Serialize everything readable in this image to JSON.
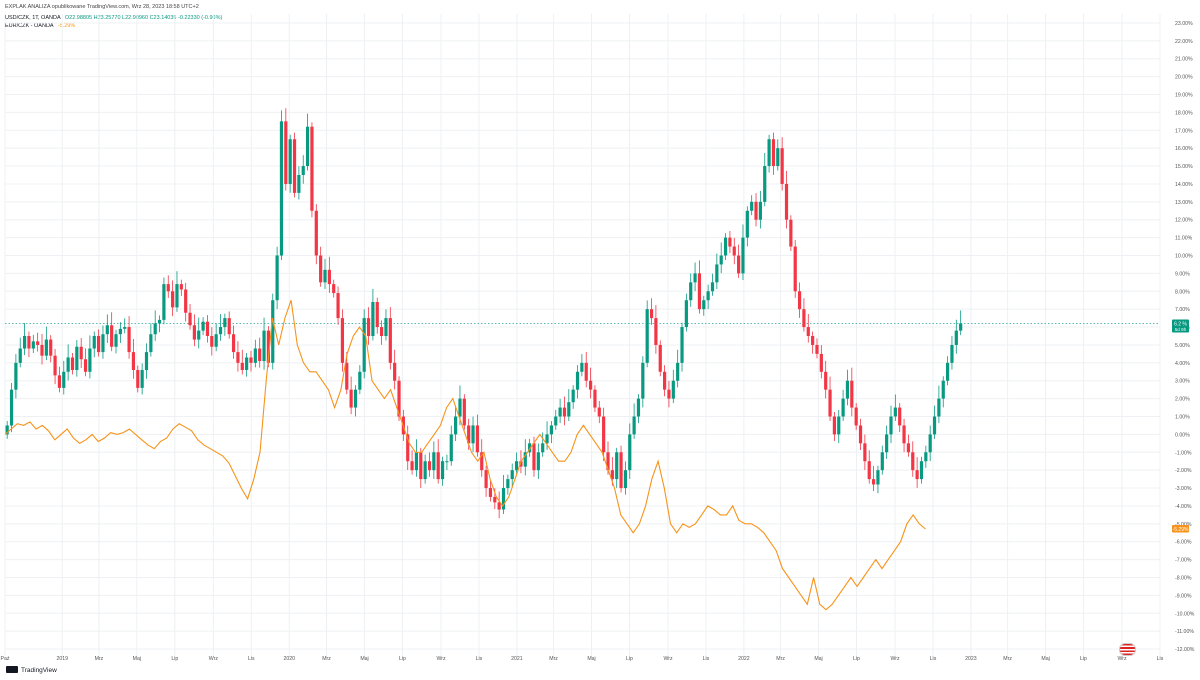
{
  "header": {
    "text": "EXPLAK ANALIZA opublikowane TradingView.com, Wrz 28, 2023 18:58 UTC+2"
  },
  "legend": {
    "series1_label": "USD/CZK, 1T, OANDA",
    "series1_values": "O22.98805 H23.25770 L22.90960 C23.14035 -0.22330 (-0.96%)",
    "series2_label": "EUR/CZK - OANDA",
    "series2_value": "-5.29%"
  },
  "logo": {
    "text": "TradingView"
  },
  "colors": {
    "up": "#089981",
    "down": "#f23645",
    "line": "#f7931a",
    "grid": "#eef0f3",
    "ref_line": "#26a69a"
  },
  "chart_data": {
    "type": "candlestick",
    "y_axis_unit": "%",
    "ylim": [
      -12.5,
      23.5
    ],
    "y_ticks": [
      -12,
      -11,
      -10,
      -9,
      -8,
      -7,
      -6,
      -5,
      -4,
      -3,
      -2,
      -1,
      0,
      1,
      2,
      3,
      4,
      5,
      6,
      7,
      8,
      9,
      10,
      11,
      12,
      13,
      14,
      15,
      16,
      17,
      18,
      19,
      20,
      21,
      22,
      23
    ],
    "y_tick_labels": [
      "-12.00%",
      "-11.00%",
      "-10.00%",
      "-9.00%",
      "-8.00%",
      "-7.00%",
      "-6.00%",
      "-5.00%",
      "-4.00%",
      "-3.00%",
      "-2.00%",
      "-1.00%",
      "0.00%",
      "1.00%",
      "2.00%",
      "3.00%",
      "4.00%",
      "5.00%",
      "6.00%",
      "7.00%",
      "8.00%",
      "9.00%",
      "10.00%",
      "11.00%",
      "12.00%",
      "13.00%",
      "14.00%",
      "15.00%",
      "16.00%",
      "17.00%",
      "18.00%",
      "19.00%",
      "20.00%",
      "21.00%",
      "22.00%",
      "23.00%"
    ],
    "x_range": [
      "2018-10",
      "2023-11"
    ],
    "x_ticks": [
      {
        "t": "2018-10",
        "label": "Paź"
      },
      {
        "t": "2019-01",
        "label": "2019"
      },
      {
        "t": "2019-03",
        "label": "Mrz"
      },
      {
        "t": "2019-05",
        "label": "Maj"
      },
      {
        "t": "2019-07",
        "label": "Lip"
      },
      {
        "t": "2019-09",
        "label": "Wrz"
      },
      {
        "t": "2019-11",
        "label": "Lis"
      },
      {
        "t": "2020-01",
        "label": "2020"
      },
      {
        "t": "2020-03",
        "label": "Mrz"
      },
      {
        "t": "2020-05",
        "label": "Maj"
      },
      {
        "t": "2020-07",
        "label": "Lip"
      },
      {
        "t": "2020-09",
        "label": "Wrz"
      },
      {
        "t": "2020-11",
        "label": "Lis"
      },
      {
        "t": "2021-01",
        "label": "2021"
      },
      {
        "t": "2021-03",
        "label": "Mrz"
      },
      {
        "t": "2021-05",
        "label": "Maj"
      },
      {
        "t": "2021-07",
        "label": "Lip"
      },
      {
        "t": "2021-09",
        "label": "Wrz"
      },
      {
        "t": "2021-11",
        "label": "Lis"
      },
      {
        "t": "2022-01",
        "label": "2022"
      },
      {
        "t": "2022-03",
        "label": "Mrz"
      },
      {
        "t": "2022-05",
        "label": "Maj"
      },
      {
        "t": "2022-07",
        "label": "Lip"
      },
      {
        "t": "2022-09",
        "label": "Wrz"
      },
      {
        "t": "2022-11",
        "label": "Lis"
      },
      {
        "t": "2023-01",
        "label": "2023"
      },
      {
        "t": "2023-03",
        "label": "Mrz"
      },
      {
        "t": "2023-05",
        "label": "Maj"
      },
      {
        "t": "2023-07",
        "label": "Lip"
      },
      {
        "t": "2023-09",
        "label": "Wrz"
      },
      {
        "t": "2023-11",
        "label": "Lis"
      }
    ],
    "grid": true,
    "reference_line": 6.2,
    "last_value_labels": [
      {
        "series": "USD/CZK, 1T, OANDA",
        "text": "6.2 %",
        "sub": "5d 9h",
        "value": 6.2
      },
      {
        "series": "EUR/CZK - OANDA",
        "text": "-5.29%",
        "value": -5.29
      }
    ],
    "candles_step_days": 7,
    "candles_closes": [
      0.5,
      2.5,
      4.0,
      4.8,
      5.5,
      4.8,
      5.2,
      5.0,
      4.4,
      5.3,
      4.4,
      3.3,
      2.6,
      3.5,
      4.3,
      3.6,
      4.9,
      4.2,
      3.5,
      4.8,
      5.5,
      4.6,
      5.6,
      6.1,
      4.9,
      5.6,
      5.9,
      6.0,
      4.6,
      3.6,
      2.6,
      3.6,
      4.6,
      5.6,
      6.2,
      6.4,
      8.4,
      8.0,
      7.1,
      8.4,
      8.1,
      6.8,
      6.1,
      5.3,
      5.8,
      6.3,
      5.5,
      4.9,
      5.6,
      6.0,
      6.5,
      5.6,
      4.6,
      4.0,
      3.6,
      4.3,
      4.0,
      4.8,
      4.1,
      5.8,
      4.0,
      7.5,
      10.0,
      17.5,
      14.0,
      16.5,
      13.5,
      14.5,
      15.0,
      17.2,
      12.5,
      10.0,
      8.5,
      9.2,
      8.4,
      7.9,
      6.5,
      4.0,
      2.5,
      1.5,
      2.5,
      3.5,
      6.5,
      5.5,
      7.4,
      6.0,
      5.5,
      6.5,
      4.0,
      3.0,
      1.0,
      0.0,
      -1.5,
      -2.0,
      -1.0,
      -2.5,
      -1.5,
      -2.0,
      -1.0,
      -2.5,
      -1.5,
      -1.5,
      0.0,
      1.0,
      2.0,
      0.5,
      -0.5,
      0.5,
      -1.0,
      -2.0,
      -3.0,
      -3.5,
      -3.8,
      -4.2,
      -3.0,
      -2.5,
      -2.0,
      -1.5,
      -1.8,
      -1.0,
      -0.5,
      -2.0,
      -1.0,
      -0.5,
      0.0,
      0.5,
      1.0,
      1.5,
      1.0,
      1.8,
      2.5,
      3.5,
      4.0,
      3.0,
      2.5,
      1.5,
      1.0,
      -1.0,
      -2.0,
      -2.5,
      -1.0,
      -3.0,
      -2.0,
      0.0,
      1.0,
      2.0,
      4.0,
      7.0,
      6.5,
      5.0,
      3.5,
      2.5,
      2.0,
      3.0,
      4.0,
      6.0,
      7.5,
      8.5,
      9.0,
      7.0,
      7.5,
      8.0,
      8.5,
      9.5,
      10.0,
      11.0,
      10.5,
      10.0,
      9.0,
      11.0,
      12.5,
      13.0,
      12.0,
      13.0,
      15.0,
      16.5,
      15.0,
      16.0,
      14.0,
      12.0,
      10.5,
      8.0,
      7.0,
      6.0,
      5.5,
      5.0,
      4.5,
      3.5,
      2.5,
      1.0,
      0.0,
      1.0,
      2.0,
      3.0,
      1.5,
      0.5,
      -0.5,
      -1.5,
      -2.5,
      -2.8,
      -2.0,
      -1.0,
      0.0,
      1.0,
      1.5,
      0.5,
      -0.5,
      -1.0,
      -2.0,
      -2.5,
      -1.5,
      -1.0,
      0.0,
      1.0,
      2.0,
      3.0,
      4.0,
      5.0,
      5.8,
      6.2
    ],
    "series_line_name": "EUR/CZK - OANDA",
    "series_line_step_days": 10,
    "series_line_values": [
      0.0,
      0.3,
      0.6,
      0.5,
      0.7,
      0.3,
      0.5,
      0.2,
      -0.3,
      0.0,
      0.3,
      -0.2,
      -0.5,
      -0.3,
      0.0,
      -0.4,
      -0.2,
      0.1,
      0.0,
      0.1,
      0.3,
      0.0,
      -0.3,
      -0.6,
      -0.8,
      -0.4,
      -0.2,
      0.3,
      0.6,
      0.4,
      0.2,
      -0.3,
      -0.6,
      -0.8,
      -1.0,
      -1.2,
      -1.6,
      -2.3,
      -3.0,
      -3.6,
      -2.5,
      -1.0,
      3.0,
      6.5,
      5.0,
      6.5,
      7.5,
      5.0,
      4.0,
      3.5,
      3.5,
      3.0,
      2.5,
      1.5,
      2.5,
      4.5,
      5.5,
      6.0,
      5.5,
      3.0,
      2.5,
      2.0,
      2.5,
      1.5,
      0.5,
      -0.5,
      -1.0,
      -1.0,
      -0.5,
      0.0,
      0.5,
      1.5,
      2.0,
      1.0,
      0.0,
      -1.0,
      -1.5,
      -1.0,
      -2.5,
      -3.5,
      -4.0,
      -3.5,
      -2.5,
      -1.5,
      -1.0,
      -0.5,
      0.0,
      -0.5,
      -1.0,
      -1.5,
      -1.5,
      -1.0,
      0.0,
      0.5,
      0.0,
      -0.5,
      -1.0,
      -2.0,
      -3.0,
      -4.5,
      -5.0,
      -5.5,
      -5.0,
      -4.0,
      -2.5,
      -1.5,
      -3.0,
      -5.0,
      -5.5,
      -5.0,
      -5.2,
      -5.0,
      -4.5,
      -4.0,
      -4.2,
      -4.5,
      -4.5,
      -4.0,
      -4.8,
      -5.0,
      -5.0,
      -5.2,
      -5.5,
      -6.0,
      -6.5,
      -7.5,
      -8.0,
      -8.5,
      -9.0,
      -9.5,
      -8.0,
      -9.5,
      -9.8,
      -9.5,
      -9.0,
      -8.5,
      -8.0,
      -8.5,
      -8.0,
      -7.5,
      -7.0,
      -7.5,
      -7.0,
      -6.5,
      -6.0,
      -5.0,
      -4.5,
      -5.0,
      -5.29
    ]
  }
}
